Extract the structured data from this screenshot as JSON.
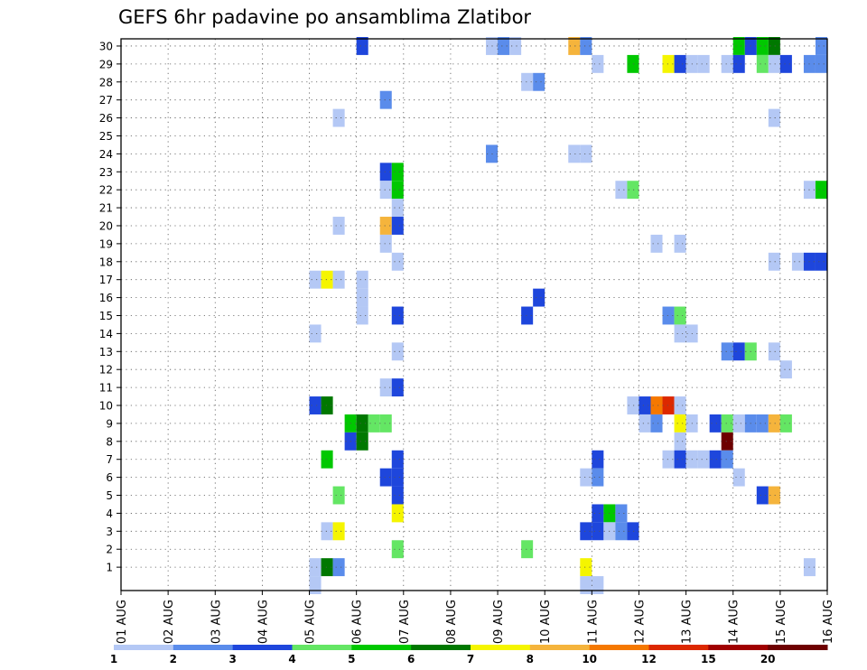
{
  "chart_data": {
    "type": "heatmap",
    "title": "GEFS 6hr padavine po ansamblima Zlatibor",
    "xlabel": "",
    "ylabel": "",
    "x_ticks": [
      "01 AUG",
      "02 AUG",
      "03 AUG",
      "04 AUG",
      "05 AUG",
      "06 AUG",
      "07 AUG",
      "08 AUG",
      "09 AUG",
      "10 AUG",
      "11 AUG",
      "12 AUG",
      "13 AUG",
      "14 AUG",
      "15 AUG",
      "16 AUG"
    ],
    "y_ticks": [
      "1",
      "2",
      "3",
      "4",
      "5",
      "6",
      "7",
      "8",
      "9",
      "10",
      "11",
      "12",
      "13",
      "14",
      "15",
      "16",
      "17",
      "18",
      "19",
      "20",
      "21",
      "22",
      "23",
      "24",
      "25",
      "26",
      "27",
      "28",
      "29",
      "30"
    ],
    "x_range": [
      "01 AUG 00Z",
      "16 AUG 00Z"
    ],
    "time_step_hours": 6,
    "y_range": [
      0,
      30
    ],
    "grid": true,
    "legend": "bottom colorbar",
    "colorbar": {
      "labels": [
        "1",
        "2",
        "3",
        "4",
        "5",
        "6",
        "7",
        "8",
        "10",
        "12",
        "15",
        "20"
      ],
      "colors": [
        "#b4c8f5",
        "#5a8ceb",
        "#1e46dc",
        "#64e664",
        "#00c800",
        "#007800",
        "#f5f500",
        "#f5b43c",
        "#f57800",
        "#dc2800",
        "#a00000",
        "#6e0000"
      ]
    },
    "cell_colors": {
      "a": "#b4c8f5",
      "b": "#5a8ceb",
      "c": "#1e46dc",
      "d": "#64e664",
      "e": "#00c800",
      "f": "#007800",
      "g": "#f5f500",
      "h": "#f5b43c",
      "i": "#f57800",
      "j": "#dc2800",
      "k": "#a00000",
      "l": "#6e0000"
    },
    "cells": [
      [
        "30 AUG 06 00Z",
        "c",
        30
      ],
      [
        "30 AUG 08 18Z",
        "a",
        30
      ],
      [
        "30 AUG 09 00Z",
        "b",
        30
      ],
      [
        "30 AUG 09 06Z",
        "a",
        30
      ],
      [
        "30 AUG 10 12Z",
        "h",
        30
      ],
      [
        "30 AUG 10 18Z",
        "b",
        30
      ],
      [
        "30 AUG 14 00Z",
        "e",
        30
      ],
      [
        "30 AUG 14 06Z",
        "c",
        30
      ],
      [
        "30 AUG 14 12Z",
        "e",
        30
      ],
      [
        "30 AUG 14 18Z",
        "f",
        30
      ],
      [
        "30 AUG 15 18Z",
        "b",
        30
      ],
      [
        "29 AUG 11 00Z",
        "a",
        29
      ],
      [
        "29 AUG 11 18Z",
        "e",
        29
      ],
      [
        "29 AUG 12 12Z",
        "g",
        29
      ],
      [
        "29 AUG 12 18Z",
        "c",
        29
      ],
      [
        "29 AUG 13 00Z",
        "a",
        29
      ],
      [
        "29 AUG 13 06Z",
        "a",
        29
      ],
      [
        "29 AUG 13 18Z",
        "a",
        29
      ],
      [
        "29 AUG 14 00Z",
        "c",
        29
      ],
      [
        "29 AUG 14 12Z",
        "d",
        29
      ],
      [
        "29 AUG 14 18Z",
        "a",
        29
      ],
      [
        "29 AUG 15 00Z",
        "c",
        29
      ],
      [
        "29 AUG 15 12Z",
        "b",
        29
      ],
      [
        "29 AUG 15 18Z",
        "b",
        29
      ],
      [
        "28 AUG 09 12Z",
        "a",
        28
      ],
      [
        "28 AUG 09 18Z",
        "b",
        28
      ],
      [
        "27 AUG 06 12Z",
        "b",
        27
      ],
      [
        "26 AUG 05 12Z",
        "a",
        26
      ],
      [
        "26 AUG 14 18Z",
        "a",
        26
      ],
      [
        "24 AUG 08 18Z",
        "b",
        24
      ],
      [
        "24 AUG 10 12Z",
        "a",
        24
      ],
      [
        "24 AUG 10 18Z",
        "a",
        24
      ],
      [
        "23 AUG 06 12Z",
        "c",
        23
      ],
      [
        "23 AUG 06 18Z",
        "e",
        23
      ],
      [
        "22 AUG 06 12Z",
        "a",
        22
      ],
      [
        "22 AUG 06 18Z",
        "e",
        22
      ],
      [
        "22 AUG 11 12Z",
        "a",
        22
      ],
      [
        "22 AUG 11 18Z",
        "d",
        22
      ],
      [
        "22 AUG 15 12Z",
        "a",
        22
      ],
      [
        "22 AUG 15 18Z",
        "e",
        22
      ],
      [
        "21 AUG 06 18Z",
        "a",
        21
      ],
      [
        "20 AUG 05 12Z",
        "a",
        20
      ],
      [
        "20 AUG 06 12Z",
        "h",
        20
      ],
      [
        "20 AUG 06 18Z",
        "c",
        20
      ],
      [
        "19 AUG 06 12Z",
        "a",
        19
      ],
      [
        "19 AUG 12 06Z",
        "a",
        19
      ],
      [
        "19 AUG 12 18Z",
        "a",
        19
      ],
      [
        "18 AUG 06 18Z",
        "a",
        18
      ],
      [
        "18 AUG 14 18Z",
        "a",
        18
      ],
      [
        "18 AUG 15 06Z",
        "a",
        18
      ],
      [
        "18 AUG 15 12Z",
        "c",
        18
      ],
      [
        "18 AUG 15 18Z",
        "c",
        18
      ],
      [
        "17 AUG 05 00Z",
        "a",
        17
      ],
      [
        "17 AUG 05 06Z",
        "g",
        17
      ],
      [
        "17 AUG 05 12Z",
        "a",
        17
      ],
      [
        "17 AUG 06 00Z",
        "a",
        17
      ],
      [
        "16 AUG 06 00Z",
        "a",
        16
      ],
      [
        "16 AUG 09 18Z",
        "c",
        16
      ],
      [
        "15 AUG 06 00Z",
        "a",
        15
      ],
      [
        "15 AUG 06 18Z",
        "c",
        15
      ],
      [
        "15 AUG 09 12Z",
        "c",
        15
      ],
      [
        "15 AUG 12 12Z",
        "b",
        15
      ],
      [
        "15 AUG 12 18Z",
        "d",
        15
      ],
      [
        "14 AUG 05 00Z",
        "a",
        14
      ],
      [
        "14 AUG 12 18Z",
        "a",
        14
      ],
      [
        "14 AUG 13 00Z",
        "a",
        14
      ],
      [
        "13 AUG 06 18Z",
        "a",
        13
      ],
      [
        "13 AUG 13 18Z",
        "b",
        13
      ],
      [
        "13 AUG 14 00Z",
        "c",
        13
      ],
      [
        "13 AUG 14 06Z",
        "d",
        13
      ],
      [
        "13 AUG 14 18Z",
        "a",
        13
      ],
      [
        "12 AUG 15 00Z",
        "a",
        12
      ],
      [
        "11 AUG 06 12Z",
        "a",
        11
      ],
      [
        "11 AUG 06 18Z",
        "c",
        11
      ],
      [
        "10 AUG 05 00Z",
        "c",
        10
      ],
      [
        "10 AUG 05 06Z",
        "f",
        10
      ],
      [
        "10 AUG 11 18Z",
        "a",
        10
      ],
      [
        "10 AUG 12 00Z",
        "c",
        10
      ],
      [
        "10 AUG 12 06Z",
        "i",
        10
      ],
      [
        "10 AUG 12 12Z",
        "j",
        10
      ],
      [
        "10 AUG 12 18Z",
        "a",
        10
      ],
      [
        "9 AUG 05 18Z",
        "e",
        9
      ],
      [
        "9 AUG 06 00Z",
        "f",
        9
      ],
      [
        "9 AUG 06 06Z",
        "d",
        9
      ],
      [
        "9 AUG 06 12Z",
        "d",
        9
      ],
      [
        "9 AUG 12 00Z",
        "a",
        9
      ],
      [
        "9 AUG 12 06Z",
        "b",
        9
      ],
      [
        "9 AUG 12 18Z",
        "g",
        9
      ],
      [
        "9 AUG 13 00Z",
        "a",
        9
      ],
      [
        "9 AUG 13 12Z",
        "c",
        9
      ],
      [
        "9 AUG 13 18Z",
        "d",
        9
      ],
      [
        "9 AUG 14 00Z",
        "a",
        9
      ],
      [
        "9 AUG 14 06Z",
        "b",
        9
      ],
      [
        "9 AUG 14 12Z",
        "b",
        9
      ],
      [
        "9 AUG 14 18Z",
        "h",
        9
      ],
      [
        "9 AUG 15 00Z",
        "d",
        9
      ],
      [
        "8 AUG 05 18Z",
        "c",
        8
      ],
      [
        "8 AUG 06 00Z",
        "f",
        8
      ],
      [
        "8 AUG 12 18Z",
        "a",
        8
      ],
      [
        "8 AUG 13 18Z",
        "l",
        8
      ],
      [
        "7 AUG 05 06Z",
        "e",
        7
      ],
      [
        "7 AUG 06 18Z",
        "c",
        7
      ],
      [
        "7 AUG 11 00Z",
        "c",
        7
      ],
      [
        "7 AUG 12 12Z",
        "a",
        7
      ],
      [
        "7 AUG 12 18Z",
        "c",
        7
      ],
      [
        "7 AUG 13 00Z",
        "a",
        7
      ],
      [
        "7 AUG 13 06Z",
        "a",
        7
      ],
      [
        "7 AUG 13 12Z",
        "c",
        7
      ],
      [
        "7 AUG 13 18Z",
        "b",
        7
      ],
      [
        "6 AUG 06 12Z",
        "c",
        6
      ],
      [
        "6 AUG 06 18Z",
        "c",
        6
      ],
      [
        "6 AUG 10 18Z",
        "a",
        6
      ],
      [
        "6 AUG 11 00Z",
        "b",
        6
      ],
      [
        "6 AUG 14 00Z",
        "a",
        6
      ],
      [
        "5 AUG 05 12Z",
        "d",
        5
      ],
      [
        "5 AUG 06 18Z",
        "c",
        5
      ],
      [
        "5 AUG 14 12Z",
        "c",
        5
      ],
      [
        "5 AUG 14 18Z",
        "h",
        5
      ],
      [
        "4 AUG 06 18Z",
        "g",
        4
      ],
      [
        "4 AUG 11 00Z",
        "c",
        4
      ],
      [
        "4 AUG 11 06Z",
        "e",
        4
      ],
      [
        "4 AUG 11 12Z",
        "b",
        4
      ],
      [
        "3 AUG 05 06Z",
        "a",
        3
      ],
      [
        "3 AUG 05 12Z",
        "g",
        3
      ],
      [
        "3 AUG 10 18Z",
        "c",
        3
      ],
      [
        "3 AUG 11 00Z",
        "c",
        3
      ],
      [
        "3 AUG 11 06Z",
        "a",
        3
      ],
      [
        "3 AUG 11 12Z",
        "b",
        3
      ],
      [
        "3 AUG 11 18Z",
        "c",
        3
      ],
      [
        "2 AUG 06 18Z",
        "d",
        2
      ],
      [
        "2 AUG 09 12Z",
        "d",
        2
      ],
      [
        "1 AUG 05 00Z",
        "a",
        1
      ],
      [
        "1 AUG 05 06Z",
        "f",
        1
      ],
      [
        "1 AUG 05 12Z",
        "b",
        1
      ],
      [
        "1 AUG 10 18Z",
        "g",
        1
      ],
      [
        "1 AUG 15 12Z",
        "a",
        1
      ],
      [
        "0 AUG 05 00Z",
        "a",
        0
      ],
      [
        "0 AUG 10 18Z",
        "a",
        0
      ],
      [
        "0 AUG 11 00Z",
        "a",
        0
      ]
    ]
  }
}
